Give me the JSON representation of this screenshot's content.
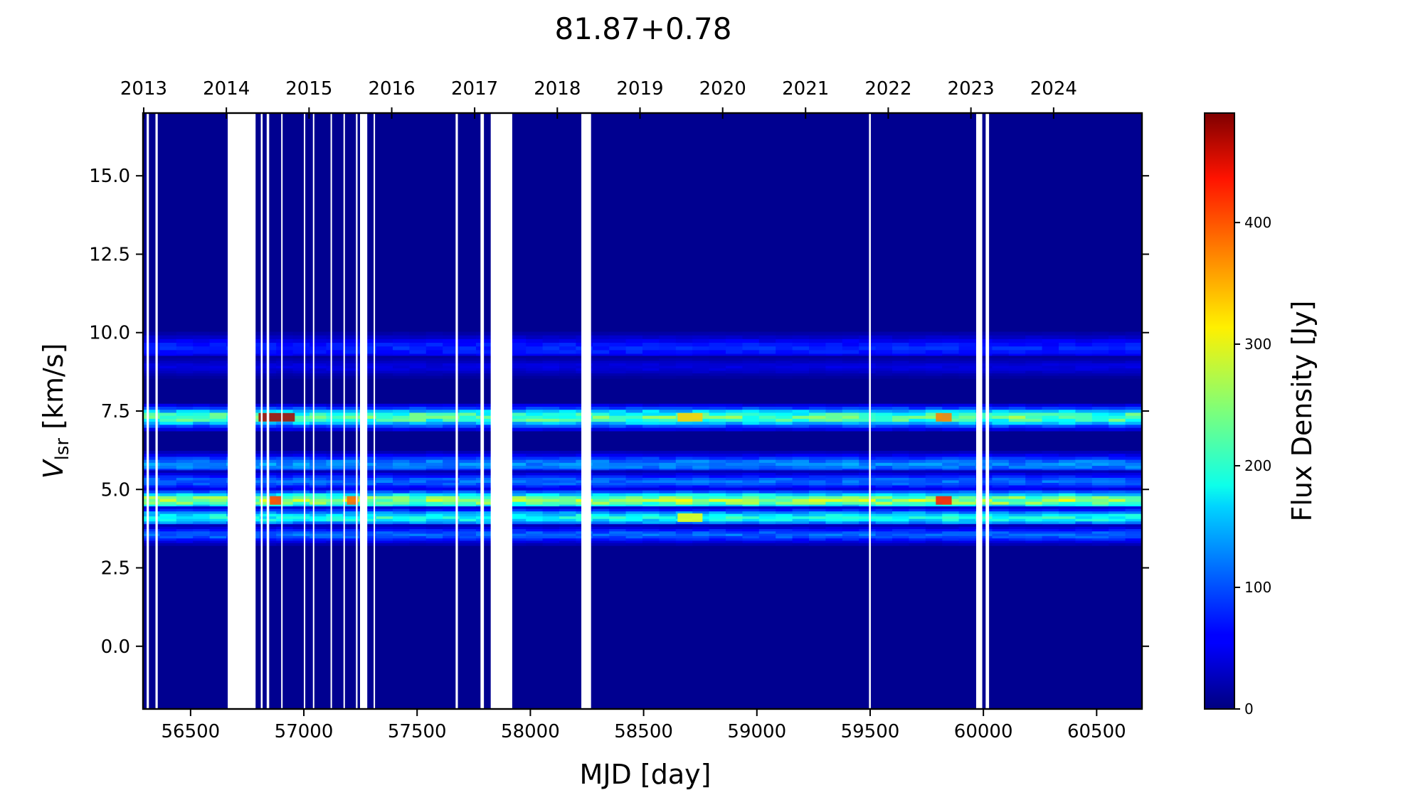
{
  "chart_data": {
    "type": "heatmap",
    "title": "81.87+0.78",
    "xlabel": "MJD [day]",
    "ylabel_main": "V",
    "ylabel_sub": "lsr",
    "ylabel_unit": " [km/s]",
    "colorbar_label": "Flux Density [Jy]",
    "colormap": "jet",
    "xlim": [
      56290,
      60700
    ],
    "ylim": [
      -2.0,
      17.0
    ],
    "clim": [
      0,
      490
    ],
    "x_ticks": [
      56500,
      57000,
      57500,
      58000,
      58500,
      59000,
      59500,
      60000,
      60500
    ],
    "y_ticks": [
      0.0,
      2.5,
      5.0,
      7.5,
      10.0,
      12.5,
      15.0
    ],
    "colorbar_ticks": [
      0,
      100,
      200,
      300,
      400
    ],
    "top_axis": {
      "label": "",
      "ticks": [
        {
          "label": "2013",
          "mjd": 56293
        },
        {
          "label": "2014",
          "mjd": 56658
        },
        {
          "label": "2015",
          "mjd": 57023
        },
        {
          "label": "2016",
          "mjd": 57388
        },
        {
          "label": "2017",
          "mjd": 57754
        },
        {
          "label": "2018",
          "mjd": 58119
        },
        {
          "label": "2019",
          "mjd": 58484
        },
        {
          "label": "2020",
          "mjd": 58849
        },
        {
          "label": "2021",
          "mjd": 59215
        },
        {
          "label": "2022",
          "mjd": 59580
        },
        {
          "label": "2023",
          "mjd": 59945
        },
        {
          "label": "2024",
          "mjd": 60310
        }
      ]
    },
    "background_flux_jy": 8,
    "emission_features": [
      {
        "velocity_kms": 9.5,
        "width_kms": 0.22,
        "peak_flux_jy": 75
      },
      {
        "velocity_kms": 8.9,
        "width_kms": 0.15,
        "peak_flux_jy": 40
      },
      {
        "velocity_kms": 7.3,
        "width_kms": 0.18,
        "peak_flux_jy": 240
      },
      {
        "velocity_kms": 5.8,
        "width_kms": 0.18,
        "peak_flux_jy": 130
      },
      {
        "velocity_kms": 5.25,
        "width_kms": 0.15,
        "peak_flux_jy": 110
      },
      {
        "velocity_kms": 4.65,
        "width_kms": 0.17,
        "peak_flux_jy": 270
      },
      {
        "velocity_kms": 4.1,
        "width_kms": 0.15,
        "peak_flux_jy": 200
      },
      {
        "velocity_kms": 3.55,
        "width_kms": 0.14,
        "peak_flux_jy": 110
      }
    ],
    "flares": [
      {
        "mjd_start": 56800,
        "mjd_end": 56960,
        "velocity_kms": 7.3,
        "peak_flux_jy": 470
      },
      {
        "mjd_start": 56850,
        "mjd_end": 56900,
        "velocity_kms": 4.65,
        "peak_flux_jy": 400
      },
      {
        "mjd_start": 57190,
        "mjd_end": 57240,
        "velocity_kms": 4.65,
        "peak_flux_jy": 380
      },
      {
        "mjd_start": 59790,
        "mjd_end": 59860,
        "velocity_kms": 4.65,
        "peak_flux_jy": 420
      },
      {
        "mjd_start": 59790,
        "mjd_end": 59860,
        "velocity_kms": 7.3,
        "peak_flux_jy": 370
      },
      {
        "mjd_start": 58650,
        "mjd_end": 58760,
        "velocity_kms": 7.3,
        "peak_flux_jy": 330
      },
      {
        "mjd_start": 58650,
        "mjd_end": 58760,
        "velocity_kms": 4.1,
        "peak_flux_jy": 300
      }
    ],
    "data_gaps_mjd": [
      [
        56306,
        56316
      ],
      [
        56345,
        56355
      ],
      [
        56664,
        56787
      ],
      [
        56810,
        56818
      ],
      [
        56836,
        56847
      ],
      [
        56900,
        56903
      ],
      [
        57000,
        57003
      ],
      [
        57040,
        57044
      ],
      [
        57118,
        57122
      ],
      [
        57175,
        57180
      ],
      [
        57230,
        57237
      ],
      [
        57248,
        57280
      ],
      [
        57308,
        57312
      ],
      [
        57670,
        57680
      ],
      [
        57780,
        57795
      ],
      [
        57825,
        57920
      ],
      [
        58225,
        58268
      ],
      [
        59495,
        59503
      ],
      [
        59968,
        59995
      ],
      [
        60010,
        60025
      ]
    ]
  }
}
